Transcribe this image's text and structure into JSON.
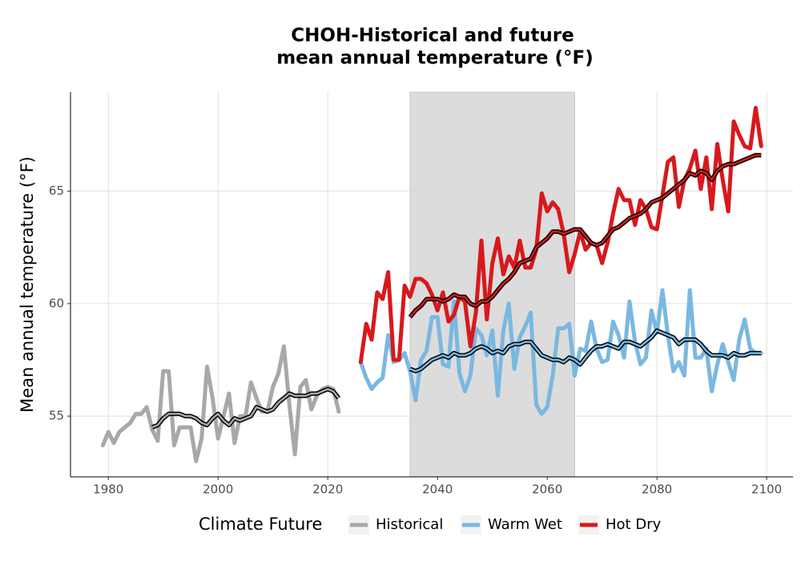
{
  "chart_data": {
    "type": "line",
    "title": [
      "CHOH-Historical and future",
      "mean annual temperature (°F)"
    ],
    "y_label": "Mean annual temperature (°F)",
    "legend_title": "Climate Future",
    "legend_position": "bottom",
    "grid": true,
    "shaded_range": [
      2035,
      2065
    ],
    "shade_color": "#dcdcdc",
    "smooth_color": "#000000",
    "xlim": [
      1973.1,
      2104.8
    ],
    "xticks": [
      1980,
      2000,
      2020,
      2040,
      2060,
      2080,
      2100
    ],
    "ylim": [
      52.3,
      69.4
    ],
    "yticks": [
      55,
      60,
      65
    ],
    "series": [
      {
        "name": "Historical",
        "color": "#a8a8a8",
        "x": [
          1979,
          1980,
          1981,
          1982,
          1983,
          1984,
          1985,
          1986,
          1987,
          1988,
          1989,
          1990,
          1991,
          1992,
          1993,
          1994,
          1995,
          1996,
          1997,
          1998,
          1999,
          2000,
          2001,
          2002,
          2003,
          2004,
          2005,
          2006,
          2007,
          2008,
          2009,
          2010,
          2011,
          2012,
          2013,
          2014,
          2015,
          2016,
          2017,
          2018,
          2019,
          2020,
          2021,
          2022
        ],
        "values": [
          53.7,
          54.3,
          53.8,
          54.3,
          54.5,
          54.7,
          55.1,
          55.1,
          55.4,
          54.4,
          53.9,
          57.0,
          57.0,
          53.7,
          54.5,
          54.5,
          54.5,
          53.0,
          54.0,
          57.2,
          55.8,
          54.0,
          55.0,
          56.0,
          53.8,
          55.0,
          55.0,
          56.5,
          55.8,
          55.2,
          55.2,
          56.3,
          56.9,
          58.1,
          55.5,
          53.3,
          56.3,
          56.6,
          55.3,
          55.9,
          56.2,
          56.3,
          56.2,
          55.2
        ],
        "smooth": {
          "x": [
            1988,
            1989,
            1990,
            1991,
            1992,
            1993,
            1994,
            1995,
            1996,
            1997,
            1998,
            1999,
            2000,
            2001,
            2002,
            2003,
            2004,
            2005,
            2006,
            2007,
            2008,
            2009,
            2010,
            2011,
            2012,
            2013,
            2014,
            2015,
            2016,
            2017,
            2018,
            2019,
            2020,
            2021,
            2022
          ],
          "values": [
            54.5,
            54.6,
            54.9,
            55.1,
            55.1,
            55.1,
            55.0,
            55.0,
            54.9,
            54.7,
            54.6,
            54.9,
            55.1,
            54.8,
            54.6,
            54.9,
            54.8,
            54.9,
            55.0,
            55.4,
            55.3,
            55.2,
            55.3,
            55.6,
            55.8,
            56.0,
            55.9,
            55.9,
            55.9,
            56.0,
            56.0,
            56.1,
            56.2,
            56.1,
            55.8
          ]
        }
      },
      {
        "name": "Warm Wet",
        "color": "#7ab8e0",
        "x": [
          2026,
          2027,
          2028,
          2029,
          2030,
          2031,
          2032,
          2033,
          2034,
          2035,
          2036,
          2037,
          2038,
          2039,
          2040,
          2041,
          2042,
          2043,
          2044,
          2045,
          2046,
          2047,
          2048,
          2049,
          2050,
          2051,
          2052,
          2053,
          2054,
          2055,
          2056,
          2057,
          2058,
          2059,
          2060,
          2061,
          2062,
          2063,
          2064,
          2065,
          2066,
          2067,
          2068,
          2069,
          2070,
          2071,
          2072,
          2073,
          2074,
          2075,
          2076,
          2077,
          2078,
          2079,
          2080,
          2081,
          2082,
          2083,
          2084,
          2085,
          2086,
          2087,
          2088,
          2089,
          2090,
          2091,
          2092,
          2093,
          2094,
          2095,
          2096,
          2097,
          2098,
          2099
        ],
        "values": [
          57.4,
          56.7,
          56.2,
          56.5,
          56.7,
          58.6,
          57.4,
          57.5,
          57.8,
          57.0,
          55.7,
          57.5,
          57.9,
          59.4,
          59.4,
          57.3,
          57.2,
          60.1,
          56.9,
          56.1,
          56.8,
          58.9,
          58.6,
          57.7,
          58.8,
          55.9,
          58.8,
          60.0,
          57.1,
          58.5,
          59.0,
          59.6,
          55.5,
          55.1,
          55.4,
          56.8,
          58.9,
          58.9,
          59.1,
          56.8,
          58.0,
          57.9,
          59.2,
          58.0,
          57.4,
          57.5,
          59.2,
          58.6,
          57.6,
          60.1,
          58.3,
          57.3,
          57.6,
          59.7,
          58.7,
          60.6,
          58.6,
          57.0,
          57.4,
          56.8,
          60.6,
          57.6,
          57.6,
          58.0,
          56.1,
          57.3,
          58.2,
          57.4,
          56.6,
          58.4,
          59.3,
          58.0,
          57.8,
          57.8
        ],
        "smooth": {
          "x": [
            2035,
            2036,
            2037,
            2038,
            2039,
            2040,
            2041,
            2042,
            2043,
            2044,
            2045,
            2046,
            2047,
            2048,
            2049,
            2050,
            2051,
            2052,
            2053,
            2054,
            2055,
            2056,
            2057,
            2058,
            2059,
            2060,
            2061,
            2062,
            2063,
            2064,
            2065,
            2066,
            2067,
            2068,
            2069,
            2070,
            2071,
            2072,
            2073,
            2074,
            2075,
            2076,
            2077,
            2078,
            2079,
            2080,
            2081,
            2082,
            2083,
            2084,
            2085,
            2086,
            2087,
            2088,
            2089,
            2090,
            2091,
            2092,
            2093,
            2094,
            2095,
            2096,
            2097,
            2098,
            2099
          ],
          "values": [
            57.1,
            57.0,
            57.1,
            57.3,
            57.5,
            57.6,
            57.7,
            57.6,
            57.8,
            57.7,
            57.7,
            57.8,
            58.0,
            58.1,
            58.0,
            57.8,
            57.9,
            57.8,
            58.1,
            58.2,
            58.2,
            58.3,
            58.3,
            58.0,
            57.7,
            57.6,
            57.5,
            57.5,
            57.4,
            57.6,
            57.5,
            57.3,
            57.6,
            57.9,
            58.1,
            58.1,
            58.2,
            58.1,
            58.0,
            58.3,
            58.3,
            58.2,
            58.1,
            58.3,
            58.5,
            58.8,
            58.7,
            58.6,
            58.5,
            58.2,
            58.4,
            58.4,
            58.4,
            58.2,
            57.9,
            57.7,
            57.7,
            57.7,
            57.6,
            57.8,
            57.7,
            57.7,
            57.8,
            57.8,
            57.8
          ]
        }
      },
      {
        "name": "Hot Dry",
        "color": "#d7191c",
        "x": [
          2026,
          2027,
          2028,
          2029,
          2030,
          2031,
          2032,
          2033,
          2034,
          2035,
          2036,
          2037,
          2038,
          2039,
          2040,
          2041,
          2042,
          2043,
          2044,
          2045,
          2046,
          2047,
          2048,
          2049,
          2050,
          2051,
          2052,
          2053,
          2054,
          2055,
          2056,
          2057,
          2058,
          2059,
          2060,
          2061,
          2062,
          2063,
          2064,
          2065,
          2066,
          2067,
          2068,
          2069,
          2070,
          2071,
          2072,
          2073,
          2074,
          2075,
          2076,
          2077,
          2078,
          2079,
          2080,
          2081,
          2082,
          2083,
          2084,
          2085,
          2086,
          2087,
          2088,
          2089,
          2090,
          2091,
          2092,
          2093,
          2094,
          2095,
          2096,
          2097,
          2098,
          2099
        ],
        "values": [
          57.4,
          59.1,
          58.4,
          60.5,
          60.2,
          61.4,
          57.5,
          57.5,
          60.8,
          60.3,
          61.1,
          61.1,
          60.9,
          60.4,
          59.7,
          60.5,
          59.2,
          59.5,
          60.3,
          60.1,
          58.1,
          59.6,
          62.8,
          59.3,
          61.8,
          62.9,
          61.3,
          62.1,
          61.6,
          62.8,
          61.6,
          61.6,
          62.4,
          64.9,
          64.1,
          64.5,
          64.2,
          63.1,
          61.4,
          62.2,
          63.2,
          62.4,
          62.7,
          62.6,
          61.8,
          62.7,
          64.0,
          65.1,
          64.6,
          64.6,
          63.5,
          64.6,
          64.2,
          63.4,
          63.3,
          64.8,
          66.3,
          66.5,
          64.3,
          65.5,
          66.0,
          66.8,
          65.1,
          66.5,
          64.2,
          67.1,
          65.5,
          64.1,
          68.1,
          67.5,
          67.0,
          66.9,
          68.7,
          67.0
        ],
        "smooth": {
          "x": [
            2035,
            2036,
            2037,
            2038,
            2039,
            2040,
            2041,
            2042,
            2043,
            2044,
            2045,
            2046,
            2047,
            2048,
            2049,
            2050,
            2051,
            2052,
            2053,
            2054,
            2055,
            2056,
            2057,
            2058,
            2059,
            2060,
            2061,
            2062,
            2063,
            2064,
            2065,
            2066,
            2067,
            2068,
            2069,
            2070,
            2071,
            2072,
            2073,
            2074,
            2075,
            2076,
            2077,
            2078,
            2079,
            2080,
            2081,
            2082,
            2083,
            2084,
            2085,
            2086,
            2087,
            2088,
            2089,
            2090,
            2091,
            2092,
            2093,
            2094,
            2095,
            2096,
            2097,
            2098,
            2099
          ],
          "values": [
            59.4,
            59.7,
            59.9,
            60.2,
            60.2,
            60.2,
            60.1,
            60.2,
            60.4,
            60.3,
            60.3,
            60.0,
            59.9,
            60.1,
            60.1,
            60.3,
            60.6,
            60.9,
            61.1,
            61.4,
            61.8,
            61.9,
            62.0,
            62.5,
            62.7,
            62.9,
            63.2,
            63.2,
            63.1,
            63.2,
            63.3,
            63.3,
            63.0,
            62.7,
            62.6,
            62.7,
            63.0,
            63.3,
            63.4,
            63.6,
            63.8,
            63.9,
            64.0,
            64.2,
            64.5,
            64.6,
            64.7,
            64.9,
            65.1,
            65.3,
            65.5,
            65.8,
            65.7,
            65.9,
            65.8,
            65.5,
            65.9,
            66.1,
            66.2,
            66.2,
            66.3,
            66.4,
            66.5,
            66.6,
            66.6
          ]
        }
      }
    ]
  }
}
